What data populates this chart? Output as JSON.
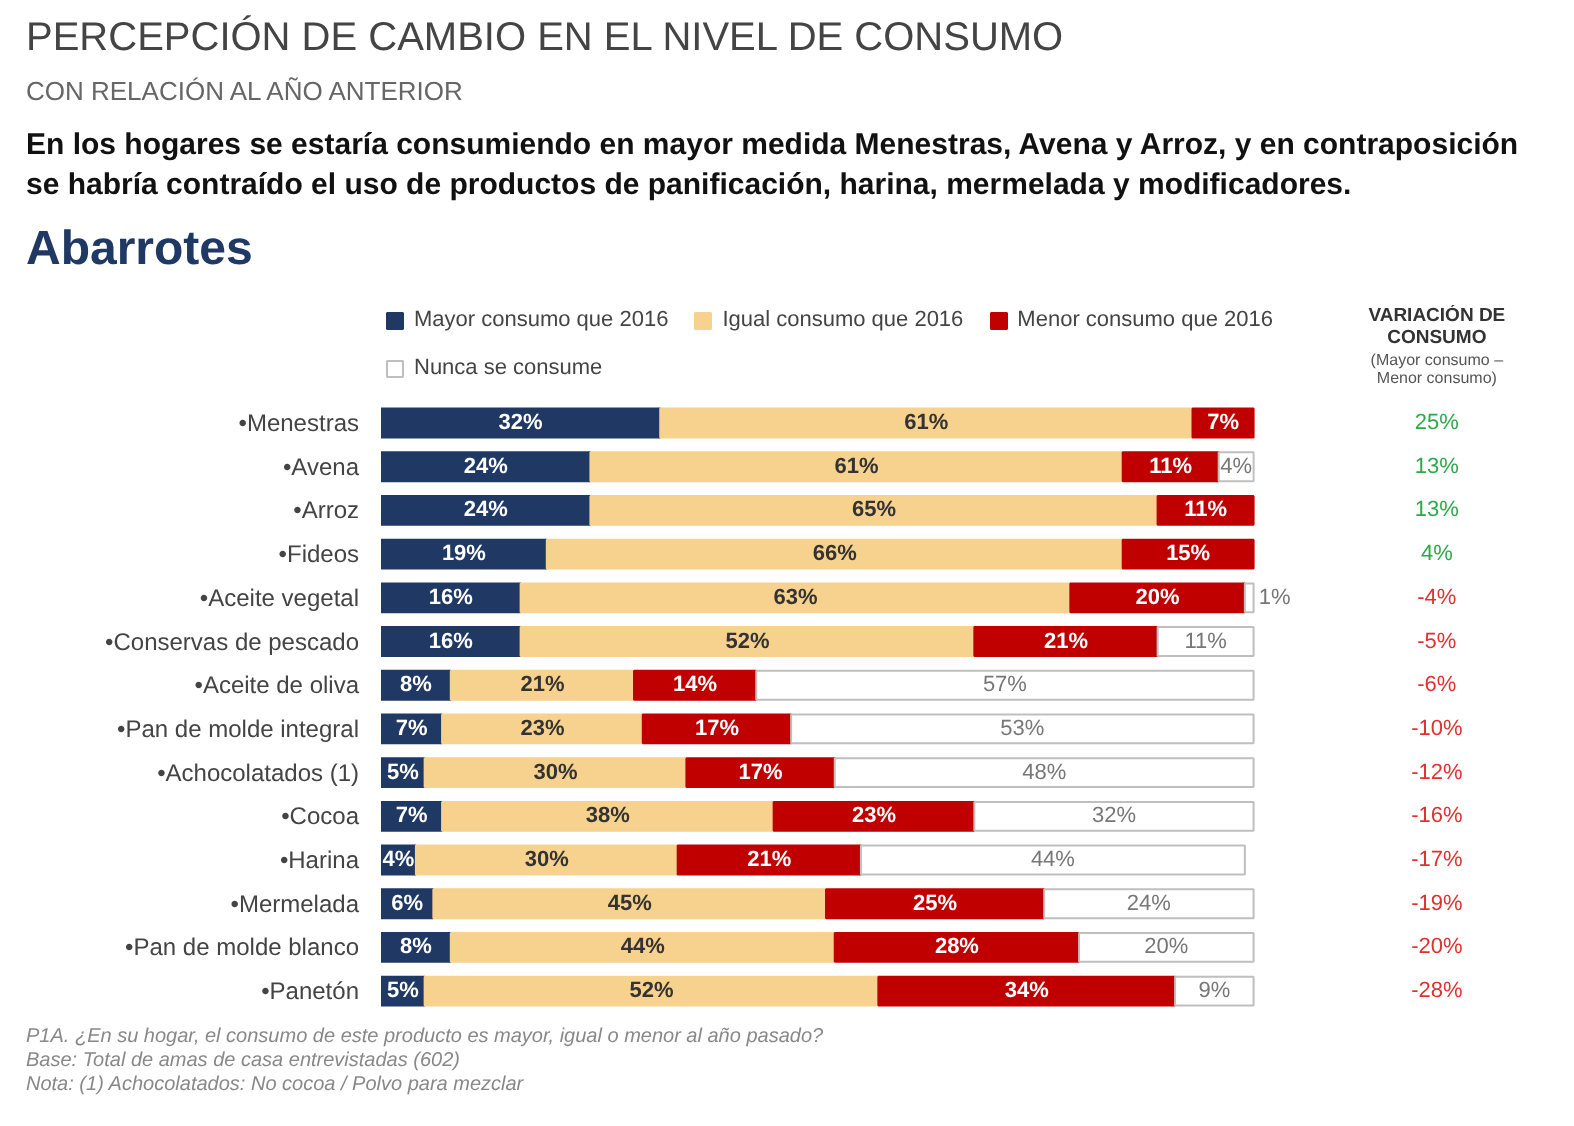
{
  "chart_data": [
    {
      "type": "bar",
      "orientation": "horizontal",
      "stacked": true,
      "title": "PERCEPCIÓN DE CAMBIO EN EL NIVEL DE CONSUMO",
      "subtitle": "CON RELACIÓN AL AÑO ANTERIOR",
      "categories": [
        "•Menestras",
        "•Avena",
        "•Arroz",
        "•Fideos",
        "•Aceite vegetal",
        "•Conservas de pescado",
        "•Aceite de oliva",
        "•Pan de molde integral",
        "•Achocolatados (1)",
        "•Cocoa",
        "•Harina",
        "•Mermelada",
        "•Pan de molde blanco",
        "•Panetón"
      ],
      "series": [
        {
          "name": "Mayor consumo que 2016",
          "color": "#1f3864",
          "values": [
            32,
            24,
            24,
            19,
            16,
            16,
            8,
            7,
            5,
            7,
            4,
            6,
            8,
            5
          ],
          "value_labels": [
            "32%",
            "24%",
            "24%",
            "19%",
            "16%",
            "16%",
            "8%",
            "7%",
            "5%",
            "7%",
            "4%",
            "6%",
            "8%",
            "5%"
          ]
        },
        {
          "name": "Igual consumo que 2016",
          "color": "#f6d28e",
          "values": [
            61,
            61,
            65,
            66,
            63,
            52,
            21,
            23,
            30,
            38,
            30,
            45,
            44,
            52
          ],
          "value_labels": [
            "61%",
            "61%",
            "65%",
            "66%",
            "63%",
            "52%",
            "21%",
            "23%",
            "30%",
            "38%",
            "30%",
            "45%",
            "44%",
            "52%"
          ]
        },
        {
          "name": "Menor consumo que 2016",
          "color": "#c00000",
          "values": [
            7,
            11,
            11,
            15,
            20,
            21,
            14,
            17,
            17,
            23,
            21,
            25,
            28,
            34
          ],
          "value_labels": [
            "7%",
            "11%",
            "11%",
            "15%",
            "20%",
            "21%",
            "14%",
            "17%",
            "17%",
            "23%",
            "21%",
            "25%",
            "28%",
            "34%"
          ]
        },
        {
          "name": "Nunca se consume",
          "color": "#ffffff",
          "values": [
            null,
            4,
            null,
            null,
            1,
            11,
            57,
            53,
            48,
            32,
            44,
            24,
            20,
            9
          ],
          "value_labels": [
            null,
            "4%",
            null,
            null,
            "1%",
            "11%",
            "57%",
            "53%",
            "48%",
            "32%",
            "44%",
            "24%",
            "20%",
            "9%"
          ]
        }
      ],
      "legend": "top",
      "tick_labels": "y",
      "grid": false,
      "annotations": [
        "En los hogares se estaría consumiendo en mayor medida Menestras, Avena y Arroz, y en contraposición se habría contraído el uso de productos de panificación, harina, mermelada y modificadores.",
        "Abarrotes",
        "P1A. ¿En su hogar, el consumo de este producto es mayor, igual o menor al año pasado?",
        "Base: Total de amas de casa entrevistadas (602)",
        "Nota: (1) Achocolatados: No cocoa / Polvo para mezclar"
      ]
    },
    {
      "type": "other",
      "title": "VARIACIÓN DE CONSUMO",
      "subtitle": "(Mayor consumo – Menor consumo)",
      "value_labels": [
        "25%",
        "13%",
        "13%",
        "4%",
        "-4%",
        "-5%",
        "-6%",
        "-10%",
        "-12%",
        "-16%",
        "-17%",
        "-19%",
        "-20%",
        "-28%"
      ],
      "colors": [
        "#2ea84a",
        "#2ea84a",
        "#2ea84a",
        "#2ea84a",
        "#e03030",
        "#e03030",
        "#e03030",
        "#e03030",
        "#e03030",
        "#e03030",
        "#e03030",
        "#e03030",
        "#e03030",
        "#e03030"
      ]
    }
  ]
}
